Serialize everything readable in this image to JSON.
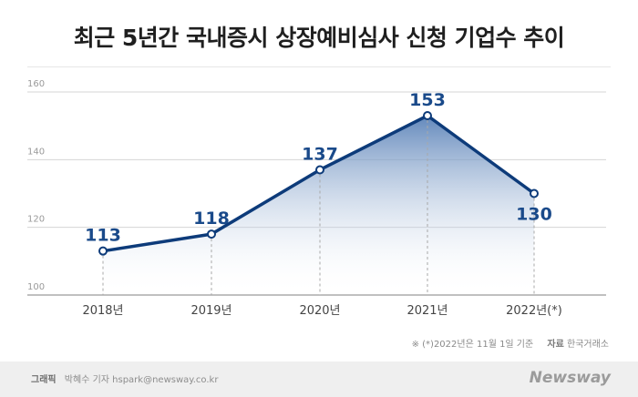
{
  "title": "최근 5년간 국내증시 상장예비심사 신청 기업수 추이",
  "note": {
    "text": "※  (*)2022년은 11월 1일 기준",
    "source_label": "자료",
    "source": "한국거래소"
  },
  "footer": {
    "credit_label": "그래픽",
    "credit": "박혜수 기자 hspark@newsway.co.kr",
    "brand": "Newsway"
  },
  "colors": {
    "line": "#0d3b7a",
    "label": "#1a4a8a",
    "fill_top": "#5a82b8",
    "grid": "#d5d5d5",
    "tick": "#9a9a9a"
  },
  "chart_data": {
    "type": "line",
    "categories": [
      "2018년",
      "2019년",
      "2020년",
      "2021년",
      "2022년(*)"
    ],
    "values": [
      113,
      118,
      137,
      153,
      130
    ],
    "ylim": [
      100,
      160
    ],
    "yticks": [
      100,
      120,
      140,
      160
    ],
    "xlabel": "",
    "ylabel": "",
    "grid": true,
    "legend": "none",
    "area_fill": true
  }
}
